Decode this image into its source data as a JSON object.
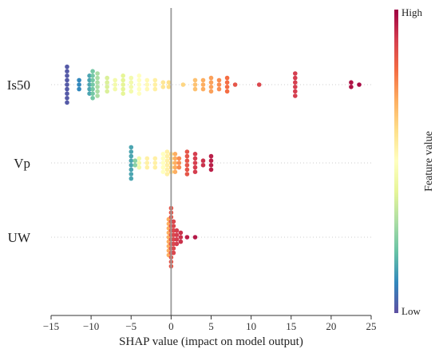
{
  "chart_data": {
    "type": "scatter",
    "subtype": "shap-beeswarm",
    "title": "",
    "xlabel": "SHAP value (impact on model output)",
    "ylabel": "",
    "xlim": [
      -15,
      25
    ],
    "xticks": [
      -15,
      -10,
      -5,
      0,
      5,
      10,
      15,
      20,
      25
    ],
    "xtick_labels": [
      "−15",
      "−10",
      "−5",
      "0",
      "5",
      "10",
      "15",
      "20",
      "25"
    ],
    "grid": false,
    "zero_line": 0,
    "features": [
      "Is50",
      "Vp",
      "UW"
    ],
    "colorbar": {
      "title": "Feature value",
      "high_label": "High",
      "low_label": "Low",
      "colormap": [
        "#5e4fa2",
        "#3288bd",
        "#66c2a5",
        "#abdda4",
        "#e6f598",
        "#ffffbf",
        "#fee08b",
        "#fdae61",
        "#f46d43",
        "#d53e4f",
        "#9e0142"
      ]
    },
    "series": [
      {
        "feature": "Is50",
        "points": [
          {
            "x": -13.0,
            "v": 0.02,
            "n": 9
          },
          {
            "x": -11.5,
            "v": 0.1,
            "n": 3
          },
          {
            "x": -10.2,
            "v": 0.15,
            "n": 5
          },
          {
            "x": -9.8,
            "v": 0.22,
            "n": 7
          },
          {
            "x": -9.2,
            "v": 0.3,
            "n": 6
          },
          {
            "x": -8.0,
            "v": 0.38,
            "n": 4
          },
          {
            "x": -7.0,
            "v": 0.45,
            "n": 3
          },
          {
            "x": -6.0,
            "v": 0.4,
            "n": 5
          },
          {
            "x": -5.0,
            "v": 0.45,
            "n": 4
          },
          {
            "x": -4.0,
            "v": 0.5,
            "n": 5
          },
          {
            "x": -3.0,
            "v": 0.52,
            "n": 3
          },
          {
            "x": -2.0,
            "v": 0.55,
            "n": 3
          },
          {
            "x": -1.0,
            "v": 0.58,
            "n": 2
          },
          {
            "x": -0.3,
            "v": 0.6,
            "n": 2
          },
          {
            "x": 1.5,
            "v": 0.62,
            "n": 1
          },
          {
            "x": 3.0,
            "v": 0.66,
            "n": 3
          },
          {
            "x": 4.0,
            "v": 0.7,
            "n": 3
          },
          {
            "x": 5.0,
            "v": 0.72,
            "n": 4
          },
          {
            "x": 6.0,
            "v": 0.75,
            "n": 3
          },
          {
            "x": 7.0,
            "v": 0.8,
            "n": 4
          },
          {
            "x": 8.0,
            "v": 0.85,
            "n": 1
          },
          {
            "x": 11.0,
            "v": 0.88,
            "n": 1
          },
          {
            "x": 15.5,
            "v": 0.9,
            "n": 6
          },
          {
            "x": 22.5,
            "v": 0.97,
            "n": 2
          },
          {
            "x": 23.5,
            "v": 0.98,
            "n": 1
          }
        ]
      },
      {
        "feature": "Vp",
        "points": [
          {
            "x": -5.0,
            "v": 0.15,
            "n": 8
          },
          {
            "x": -4.5,
            "v": 0.25,
            "n": 2
          },
          {
            "x": -4.0,
            "v": 0.45,
            "n": 3
          },
          {
            "x": -3.0,
            "v": 0.55,
            "n": 3
          },
          {
            "x": -2.0,
            "v": 0.55,
            "n": 3
          },
          {
            "x": -1.0,
            "v": 0.5,
            "n": 5
          },
          {
            "x": -0.5,
            "v": 0.55,
            "n": 6
          },
          {
            "x": 0.0,
            "v": 0.6,
            "n": 5
          },
          {
            "x": 0.5,
            "v": 0.7,
            "n": 5
          },
          {
            "x": 1.0,
            "v": 0.75,
            "n": 3
          },
          {
            "x": 2.0,
            "v": 0.85,
            "n": 6
          },
          {
            "x": 3.0,
            "v": 0.9,
            "n": 5
          },
          {
            "x": 4.0,
            "v": 0.92,
            "n": 2
          },
          {
            "x": 5.0,
            "v": 0.95,
            "n": 4
          }
        ]
      },
      {
        "feature": "UW",
        "points": [
          {
            "x": -0.3,
            "v": 0.7,
            "n": 9
          },
          {
            "x": 0.0,
            "v": 0.85,
            "n": 14
          },
          {
            "x": 0.3,
            "v": 0.88,
            "n": 8
          },
          {
            "x": 0.7,
            "v": 0.9,
            "n": 4
          },
          {
            "x": 1.2,
            "v": 0.92,
            "n": 3
          },
          {
            "x": 2.0,
            "v": 0.95,
            "n": 1
          },
          {
            "x": 3.0,
            "v": 0.96,
            "n": 1
          }
        ]
      }
    ]
  }
}
